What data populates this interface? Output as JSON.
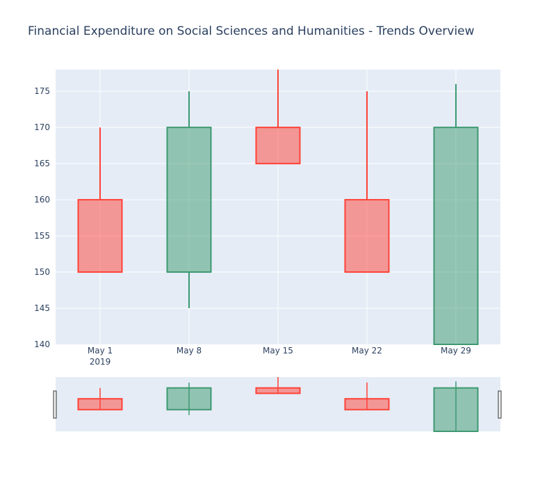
{
  "chart_data": {
    "type": "candlestick",
    "title": "Financial Expenditure on Social Sciences and Humanities - Trends Overview",
    "xlabel": "",
    "ylabel": "",
    "x_ticks": [
      "May 1",
      "May 8",
      "May 15",
      "May 22",
      "May 29"
    ],
    "x_year_label": "2019",
    "y_ticks": [
      140,
      145,
      150,
      155,
      160,
      165,
      170,
      175
    ],
    "ylim": [
      140,
      178
    ],
    "candles": [
      {
        "date": "2019-05-01",
        "open": 160,
        "high": 170,
        "low": 150,
        "close": 150
      },
      {
        "date": "2019-05-08",
        "open": 150,
        "high": 175,
        "low": 145,
        "close": 170
      },
      {
        "date": "2019-05-15",
        "open": 170,
        "high": 180,
        "low": 165,
        "close": 165
      },
      {
        "date": "2019-05-22",
        "open": 160,
        "high": 175,
        "low": 150,
        "close": 150
      },
      {
        "date": "2019-05-29",
        "open": 130,
        "high": 176,
        "low": 130,
        "close": 170
      }
    ],
    "colors": {
      "increasing_line": "#3d9970",
      "increasing_fill": "rgba(61,153,112,0.5)",
      "decreasing_line": "#ff4136",
      "decreasing_fill": "rgba(255,65,54,0.5)",
      "plot_bg": "#e5ecf6",
      "grid": "#ffffff",
      "text": "#2a3f5f"
    },
    "grid": true,
    "rangeslider": true
  }
}
